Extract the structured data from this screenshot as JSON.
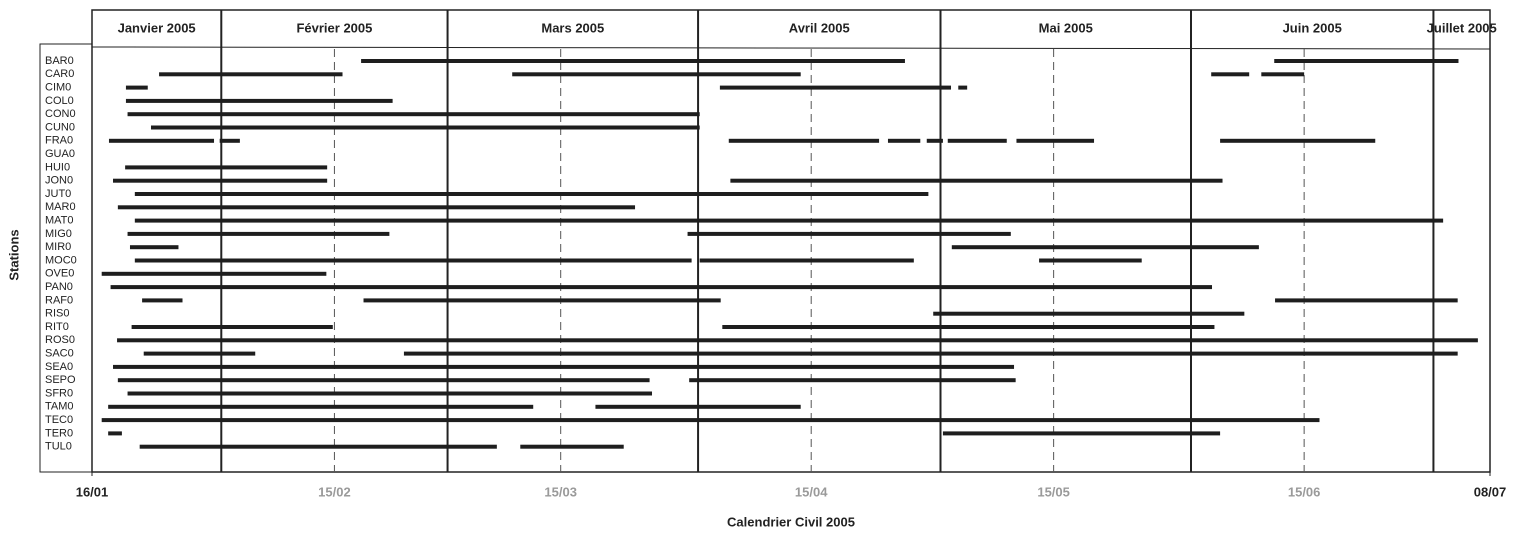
{
  "chart_data": {
    "type": "gantt",
    "xlabel": "Calendrier Civil 2005",
    "ylabel": "Stations",
    "xlim": [
      16,
      189
    ],
    "xticks": [
      {
        "value": 16,
        "label": "16/01"
      },
      {
        "value": 46,
        "label": "15/02"
      },
      {
        "value": 74,
        "label": "15/03"
      },
      {
        "value": 105,
        "label": "15/04"
      },
      {
        "value": 135,
        "label": "15/05"
      },
      {
        "value": 166,
        "label": "15/06"
      },
      {
        "value": 189,
        "label": "08/07"
      }
    ],
    "months": [
      {
        "label": "Janvier 2005",
        "start": 16,
        "end": 32
      },
      {
        "label": "Février 2005",
        "start": 32,
        "end": 60
      },
      {
        "label": "Mars 2005",
        "start": 60,
        "end": 91
      },
      {
        "label": "Avril 2005",
        "start": 91,
        "end": 121
      },
      {
        "label": "Mai 2005",
        "start": 121,
        "end": 152
      },
      {
        "label": "Juin 2005",
        "start": 152,
        "end": 182
      },
      {
        "label": "Juillet 2005",
        "start": 182,
        "end": 189
      }
    ],
    "color": "#1e1e1e",
    "categories": [
      "BAR0",
      "CAR0",
      "CIM0",
      "COL0",
      "CON0",
      "CUN0",
      "FRA0",
      "GUA0",
      "HUI0",
      "JON0",
      "JUT0",
      "MAR0",
      "MAT0",
      "MIG0",
      "MIR0",
      "MOC0",
      "OVE0",
      "PAN0",
      "RAF0",
      "RIS0",
      "RIT0",
      "ROS0",
      "SAC0",
      "SEA0",
      "SEPO",
      "SFR0",
      "TAM0",
      "TEC0",
      "TER0",
      "TUL0"
    ],
    "segments": [
      [
        [
          49.3,
          116.6
        ],
        [
          162.3,
          185.1
        ]
      ],
      [
        [
          24.3,
          47
        ],
        [
          68,
          103.7
        ],
        [
          154.5,
          159.2
        ],
        [
          160.7,
          166
        ]
      ],
      [
        [
          20.2,
          22.9
        ],
        [
          93.7,
          122.3
        ],
        [
          123.2,
          124.3
        ]
      ],
      [
        [
          20.2,
          53.2
        ]
      ],
      [
        [
          20.4,
          91.2
        ]
      ],
      [
        [
          23.3,
          91.2
        ]
      ],
      [
        [
          18.1,
          31.1
        ],
        [
          31.8,
          34.3
        ],
        [
          94.8,
          113.4
        ],
        [
          114.5,
          118.5
        ],
        [
          119.3,
          121.3
        ],
        [
          121.9,
          129.2
        ],
        [
          130.4,
          140
        ],
        [
          155.6,
          174.8
        ]
      ],
      [],
      [
        [
          20.1,
          45.1
        ]
      ],
      [
        [
          18.6,
          45.1
        ],
        [
          95,
          155.9
        ]
      ],
      [
        [
          21.3,
          119.5
        ]
      ],
      [
        [
          19.2,
          83.2
        ]
      ],
      [
        [
          21.3,
          183.2
        ]
      ],
      [
        [
          20.4,
          52.8
        ],
        [
          89.7,
          129.7
        ]
      ],
      [
        [
          20.7,
          26.7
        ],
        [
          122.4,
          160.4
        ]
      ],
      [
        [
          21.3,
          90.2
        ],
        [
          91.2,
          117.7
        ],
        [
          133.2,
          145.9
        ]
      ],
      [
        [
          17.2,
          45
        ]
      ],
      [
        [
          18.3,
          154.6
        ]
      ],
      [
        [
          22.2,
          27.2
        ],
        [
          49.6,
          93.8
        ],
        [
          162.4,
          185
        ]
      ],
      [
        [
          120.1,
          158.6
        ]
      ],
      [
        [
          20.9,
          45.8
        ],
        [
          94,
          154.9
        ]
      ],
      [
        [
          19.1,
          187.5
        ]
      ],
      [
        [
          22.4,
          36.2
        ],
        [
          54.6,
          185
        ]
      ],
      [
        [
          18.6,
          130.1
        ]
      ],
      [
        [
          19.2,
          85
        ],
        [
          89.9,
          130.3
        ]
      ],
      [
        [
          20.4,
          85.3
        ]
      ],
      [
        [
          18,
          70.6
        ],
        [
          78.3,
          103.7
        ]
      ],
      [
        [
          17.2,
          167.9
        ]
      ],
      [
        [
          18,
          19.7
        ],
        [
          121.3,
          155.6
        ]
      ],
      [
        [
          21.9,
          66.1
        ],
        [
          69,
          81.8
        ]
      ]
    ]
  }
}
